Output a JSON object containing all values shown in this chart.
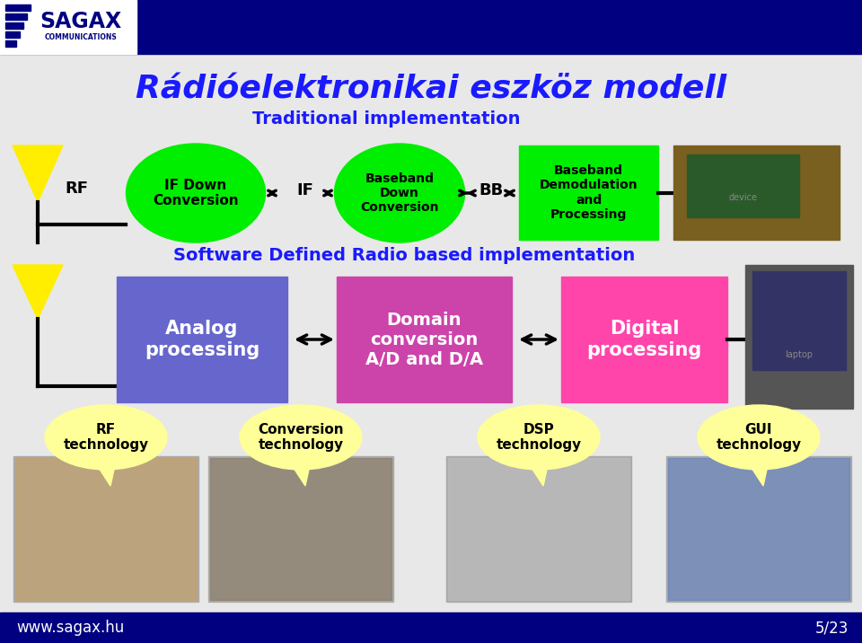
{
  "title": "Rádióelektronikai eszköz modell",
  "bg_color": "#e8e8e8",
  "header_color": "#000080",
  "footer_color": "#000080",
  "footer_text_color": "#ffffff",
  "header_url": "www.sagax.hu",
  "header_page": "5/23",
  "trad_label": "Traditional implementation",
  "sdr_label": "Software Defined Radio based implementation",
  "label_color": "#1a1aff",
  "title_color": "#1a1aff",
  "rf_label": "RF",
  "if_label": "IF",
  "bb_label": "BB",
  "trad_ellipse1_label": "IF Down\nConversion",
  "trad_ellipse2_label": "Baseband\nDown\nConversion",
  "trad_box_label": "Baseband\nDemodulation\nand\nProcessing",
  "green_color": "#00ee00",
  "sdr_box1_label": "Analog\nprocessing",
  "sdr_box1_color": "#6666cc",
  "sdr_box2_label": "Domain\nconversion\nA/D and D/A",
  "sdr_box2_color": "#cc44aa",
  "sdr_box3_label": "Digital\nprocessing",
  "sdr_box3_color": "#ff44aa",
  "antenna_color": "#ffee00",
  "bubble_color": "#ffff99",
  "bubble_text_color": "#000000",
  "bottom_labels": [
    "RF\ntechnology",
    "Conversion\ntechnology",
    "DSP\ntechnology",
    "GUI\ntechnology"
  ]
}
